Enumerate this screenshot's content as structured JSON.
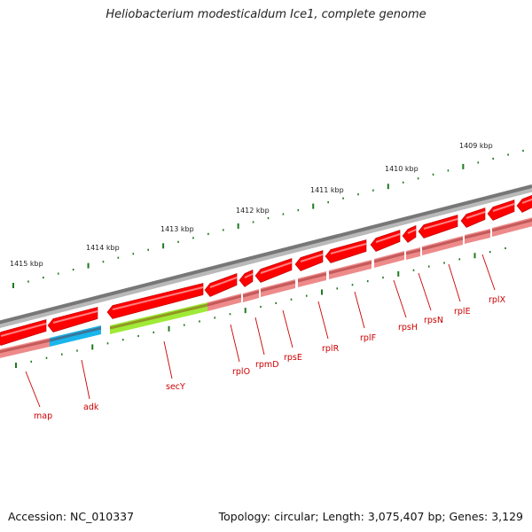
{
  "title": "Heliobacterium modesticaldum Ice1, complete genome",
  "footer": {
    "accession": "Accession: NC_010337",
    "summary": "Topology: circular; Length: 3,075,407 bp; Genes: 3,129"
  },
  "colors": {
    "backbone": "#7a7a7a",
    "gene_forward": "#ff0000",
    "gene_reverse": "#ee8a8a",
    "adk": "#19b6ec",
    "secY": "#9fea37",
    "kbp_tick": "#1f7a1f",
    "gene_label": "#cc0000"
  },
  "ruler": {
    "labels": [
      "1415 kbp",
      "1414 kbp",
      "1413 kbp",
      "1412 kbp",
      "1411 kbp",
      "1410 kbp",
      "1409 kbp"
    ]
  },
  "genes": {
    "labels": [
      "map",
      "adk",
      "secY",
      "rplO",
      "rpmD",
      "rpsE",
      "rplR",
      "rplF",
      "rpsH",
      "rpsN",
      "rplE",
      "rplX"
    ]
  }
}
